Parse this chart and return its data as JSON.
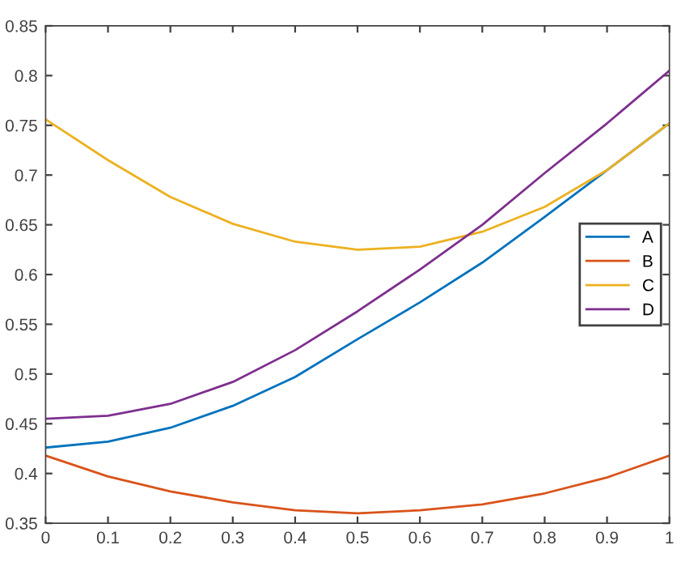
{
  "chart_data": {
    "type": "line",
    "x": [
      0,
      0.1,
      0.2,
      0.3,
      0.4,
      0.5,
      0.6,
      0.7,
      0.8,
      0.9,
      1
    ],
    "series": [
      {
        "name": "A",
        "color": "#0072bd",
        "values": [
          0.426,
          0.432,
          0.446,
          0.468,
          0.497,
          0.535,
          0.572,
          0.612,
          0.658,
          0.705,
          0.752
        ]
      },
      {
        "name": "B",
        "color": "#d95319",
        "values": [
          0.418,
          0.397,
          0.382,
          0.371,
          0.363,
          0.36,
          0.363,
          0.369,
          0.38,
          0.396,
          0.418
        ]
      },
      {
        "name": "C",
        "color": "#edb120",
        "values": [
          0.756,
          0.715,
          0.678,
          0.651,
          0.633,
          0.625,
          0.628,
          0.643,
          0.668,
          0.705,
          0.752
        ]
      },
      {
        "name": "D",
        "color": "#7e2f8e",
        "values": [
          0.455,
          0.458,
          0.47,
          0.492,
          0.524,
          0.563,
          0.605,
          0.65,
          0.702,
          0.752,
          0.805
        ]
      }
    ],
    "xlim": [
      0,
      1
    ],
    "ylim": [
      0.35,
      0.85
    ],
    "xticks": [
      0,
      0.1,
      0.2,
      0.3,
      0.4,
      0.5,
      0.6,
      0.7,
      0.8,
      0.9,
      1
    ],
    "yticks": [
      0.35,
      0.4,
      0.45,
      0.5,
      0.55,
      0.6,
      0.65,
      0.7,
      0.75,
      0.8,
      0.85
    ],
    "legend": "center right"
  }
}
